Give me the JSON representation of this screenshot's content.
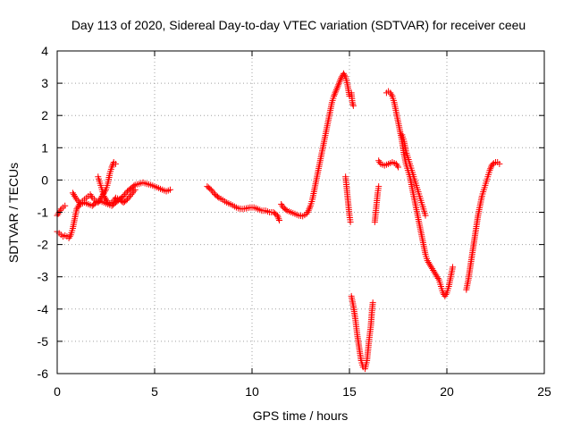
{
  "chart_data": {
    "type": "scatter",
    "title": "Day 113 of 2020, Sidereal Day-to-day VTEC variation (SDTVAR) for receiver ceeu",
    "xlabel": "GPS time / hours",
    "ylabel": "SDTVAR / TECUs",
    "xlim": [
      0,
      25
    ],
    "ylim": [
      -6,
      4
    ],
    "xticks": [
      "0",
      "5",
      "10",
      "15",
      "20",
      "25"
    ],
    "yticks": [
      "-6",
      "-5",
      "-4",
      "-3",
      "-2",
      "-1",
      "0",
      "1",
      "2",
      "3",
      "4"
    ],
    "grid": true,
    "marker": "+",
    "color": "#ff0000",
    "series": [
      {
        "name": "SDTVAR",
        "segments": [
          [
            [
              0.0,
              -1.1
            ],
            [
              0.1,
              -1.0
            ],
            [
              0.2,
              -0.9
            ],
            [
              0.3,
              -0.85
            ],
            [
              0.4,
              -0.8
            ]
          ],
          [
            [
              0.0,
              -1.6
            ],
            [
              0.1,
              -1.65
            ],
            [
              0.2,
              -1.7
            ],
            [
              0.3,
              -1.75
            ],
            [
              0.4,
              -1.72
            ],
            [
              0.5,
              -1.75
            ],
            [
              0.6,
              -1.8
            ],
            [
              0.7,
              -1.7
            ],
            [
              0.8,
              -1.5
            ],
            [
              0.9,
              -1.2
            ],
            [
              1.0,
              -0.9
            ],
            [
              1.1,
              -0.8
            ],
            [
              1.2,
              -0.7
            ],
            [
              1.3,
              -0.65
            ],
            [
              1.4,
              -0.6
            ],
            [
              1.5,
              -0.55
            ],
            [
              1.6,
              -0.5
            ],
            [
              1.7,
              -0.45
            ],
            [
              1.8,
              -0.55
            ],
            [
              1.9,
              -0.6
            ],
            [
              2.0,
              -0.65
            ],
            [
              2.1,
              -0.7
            ],
            [
              2.2,
              -0.6
            ],
            [
              2.3,
              -0.5
            ],
            [
              2.4,
              -0.4
            ],
            [
              2.5,
              -0.3
            ],
            [
              2.6,
              -0.1
            ],
            [
              2.7,
              0.2
            ],
            [
              2.8,
              0.4
            ],
            [
              2.9,
              0.55
            ],
            [
              3.0,
              0.5
            ]
          ],
          [
            [
              0.8,
              -0.4
            ],
            [
              1.0,
              -0.6
            ],
            [
              1.2,
              -0.75
            ],
            [
              1.4,
              -0.7
            ],
            [
              1.6,
              -0.75
            ],
            [
              1.8,
              -0.8
            ],
            [
              2.0,
              -0.7
            ],
            [
              2.2,
              -0.65
            ],
            [
              2.4,
              -0.7
            ],
            [
              2.6,
              -0.75
            ],
            [
              2.8,
              -0.8
            ],
            [
              3.0,
              -0.7
            ],
            [
              3.2,
              -0.6
            ],
            [
              3.4,
              -0.5
            ],
            [
              3.6,
              -0.35
            ],
            [
              3.8,
              -0.25
            ],
            [
              4.0,
              -0.15
            ],
            [
              4.2,
              -0.12
            ],
            [
              4.4,
              -0.08
            ],
            [
              4.6,
              -0.12
            ],
            [
              4.8,
              -0.15
            ],
            [
              5.0,
              -0.2
            ],
            [
              5.2,
              -0.25
            ],
            [
              5.4,
              -0.3
            ],
            [
              5.6,
              -0.35
            ],
            [
              5.8,
              -0.3
            ]
          ],
          [
            [
              2.1,
              0.1
            ],
            [
              2.2,
              -0.1
            ],
            [
              2.3,
              -0.3
            ],
            [
              2.4,
              -0.5
            ],
            [
              2.5,
              -0.6
            ],
            [
              2.6,
              -0.7
            ],
            [
              2.7,
              -0.72
            ],
            [
              2.8,
              -0.7
            ],
            [
              2.9,
              -0.65
            ],
            [
              3.0,
              -0.55
            ],
            [
              3.2,
              -0.6
            ],
            [
              3.4,
              -0.7
            ],
            [
              3.6,
              -0.6
            ],
            [
              3.8,
              -0.45
            ],
            [
              4.0,
              -0.3
            ]
          ],
          [
            [
              7.7,
              -0.2
            ],
            [
              7.9,
              -0.3
            ],
            [
              8.1,
              -0.45
            ],
            [
              8.3,
              -0.55
            ],
            [
              8.5,
              -0.62
            ],
            [
              8.7,
              -0.7
            ],
            [
              8.9,
              -0.75
            ],
            [
              9.1,
              -0.82
            ],
            [
              9.3,
              -0.88
            ],
            [
              9.5,
              -0.9
            ],
            [
              9.7,
              -0.88
            ],
            [
              9.9,
              -0.85
            ],
            [
              10.1,
              -0.85
            ],
            [
              10.3,
              -0.9
            ],
            [
              10.5,
              -0.95
            ],
            [
              10.7,
              -0.95
            ],
            [
              10.9,
              -1.0
            ],
            [
              11.1,
              -1.0
            ],
            [
              11.3,
              -1.1
            ],
            [
              11.4,
              -1.25
            ]
          ],
          [
            [
              11.5,
              -0.75
            ],
            [
              11.6,
              -0.85
            ],
            [
              11.8,
              -0.95
            ],
            [
              12.0,
              -1.0
            ],
            [
              12.2,
              -1.05
            ],
            [
              12.4,
              -1.1
            ],
            [
              12.6,
              -1.12
            ],
            [
              12.8,
              -1.05
            ],
            [
              12.9,
              -0.95
            ],
            [
              13.0,
              -0.8
            ],
            [
              13.1,
              -0.6
            ],
            [
              13.2,
              -0.3
            ],
            [
              13.3,
              0.0
            ],
            [
              13.4,
              0.3
            ],
            [
              13.5,
              0.6
            ],
            [
              13.6,
              0.9
            ],
            [
              13.7,
              1.2
            ],
            [
              13.8,
              1.5
            ],
            [
              13.9,
              1.8
            ],
            [
              14.0,
              2.1
            ],
            [
              14.1,
              2.4
            ],
            [
              14.2,
              2.6
            ],
            [
              14.3,
              2.75
            ],
            [
              14.4,
              2.9
            ],
            [
              14.5,
              3.05
            ],
            [
              14.6,
              3.2
            ],
            [
              14.7,
              3.3
            ],
            [
              14.8,
              3.2
            ],
            [
              14.9,
              2.95
            ],
            [
              15.0,
              2.6
            ]
          ],
          [
            [
              15.1,
              2.7
            ],
            [
              15.15,
              2.4
            ],
            [
              15.2,
              2.3
            ]
          ],
          [
            [
              14.8,
              0.1
            ],
            [
              14.85,
              -0.2
            ],
            [
              14.9,
              -0.5
            ],
            [
              14.95,
              -0.8
            ],
            [
              15.0,
              -1.1
            ],
            [
              15.05,
              -1.3
            ]
          ],
          [
            [
              15.1,
              -3.6
            ],
            [
              15.2,
              -3.9
            ],
            [
              15.3,
              -4.3
            ],
            [
              15.4,
              -4.8
            ],
            [
              15.5,
              -5.2
            ],
            [
              15.6,
              -5.6
            ],
            [
              15.7,
              -5.8
            ],
            [
              15.8,
              -5.85
            ],
            [
              15.9,
              -5.6
            ],
            [
              16.0,
              -5.0
            ],
            [
              16.1,
              -4.5
            ],
            [
              16.15,
              -4.1
            ],
            [
              16.2,
              -3.8
            ]
          ],
          [
            [
              16.3,
              -1.3
            ],
            [
              16.35,
              -1.0
            ],
            [
              16.4,
              -0.7
            ],
            [
              16.45,
              -0.4
            ],
            [
              16.5,
              -0.2
            ]
          ],
          [
            [
              16.5,
              0.6
            ],
            [
              16.6,
              0.5
            ],
            [
              16.8,
              0.45
            ],
            [
              17.0,
              0.5
            ],
            [
              17.2,
              0.55
            ],
            [
              17.4,
              0.5
            ],
            [
              17.5,
              0.4
            ]
          ],
          [
            [
              16.9,
              2.7
            ],
            [
              17.0,
              2.75
            ],
            [
              17.1,
              2.7
            ],
            [
              17.2,
              2.6
            ],
            [
              17.3,
              2.4
            ],
            [
              17.4,
              2.1
            ],
            [
              17.5,
              1.8
            ],
            [
              17.6,
              1.5
            ],
            [
              17.7,
              1.2
            ],
            [
              17.8,
              0.8
            ],
            [
              17.9,
              0.5
            ],
            [
              18.0,
              0.3
            ],
            [
              18.1,
              0.1
            ],
            [
              18.2,
              -0.2
            ],
            [
              18.3,
              -0.5
            ],
            [
              18.4,
              -0.8
            ],
            [
              18.5,
              -1.1
            ],
            [
              18.6,
              -1.4
            ],
            [
              18.7,
              -1.7
            ],
            [
              18.8,
              -2.0
            ],
            [
              18.9,
              -2.3
            ],
            [
              19.0,
              -2.5
            ],
            [
              19.2,
              -2.7
            ],
            [
              19.4,
              -2.9
            ],
            [
              19.6,
              -3.1
            ],
            [
              19.7,
              -3.3
            ],
            [
              19.8,
              -3.5
            ],
            [
              19.9,
              -3.6
            ],
            [
              20.0,
              -3.5
            ],
            [
              20.1,
              -3.3
            ],
            [
              20.2,
              -3.0
            ],
            [
              20.3,
              -2.7
            ]
          ],
          [
            [
              17.7,
              1.4
            ],
            [
              17.8,
              1.2
            ],
            [
              17.9,
              0.9
            ],
            [
              18.0,
              0.7
            ],
            [
              18.1,
              0.5
            ],
            [
              18.2,
              0.3
            ],
            [
              18.3,
              0.1
            ],
            [
              18.4,
              -0.1
            ],
            [
              18.5,
              -0.3
            ],
            [
              18.6,
              -0.5
            ],
            [
              18.7,
              -0.7
            ],
            [
              18.8,
              -0.9
            ],
            [
              18.9,
              -1.1
            ]
          ],
          [
            [
              21.0,
              -3.4
            ],
            [
              21.1,
              -3.1
            ],
            [
              21.2,
              -2.7
            ],
            [
              21.3,
              -2.3
            ],
            [
              21.4,
              -1.9
            ],
            [
              21.5,
              -1.5
            ],
            [
              21.6,
              -1.1
            ],
            [
              21.7,
              -0.8
            ],
            [
              21.8,
              -0.5
            ],
            [
              21.9,
              -0.3
            ],
            [
              22.0,
              -0.1
            ],
            [
              22.1,
              0.1
            ],
            [
              22.2,
              0.3
            ],
            [
              22.3,
              0.45
            ],
            [
              22.4,
              0.52
            ],
            [
              22.5,
              0.55
            ],
            [
              22.6,
              0.55
            ],
            [
              22.7,
              0.5
            ]
          ]
        ]
      }
    ]
  }
}
